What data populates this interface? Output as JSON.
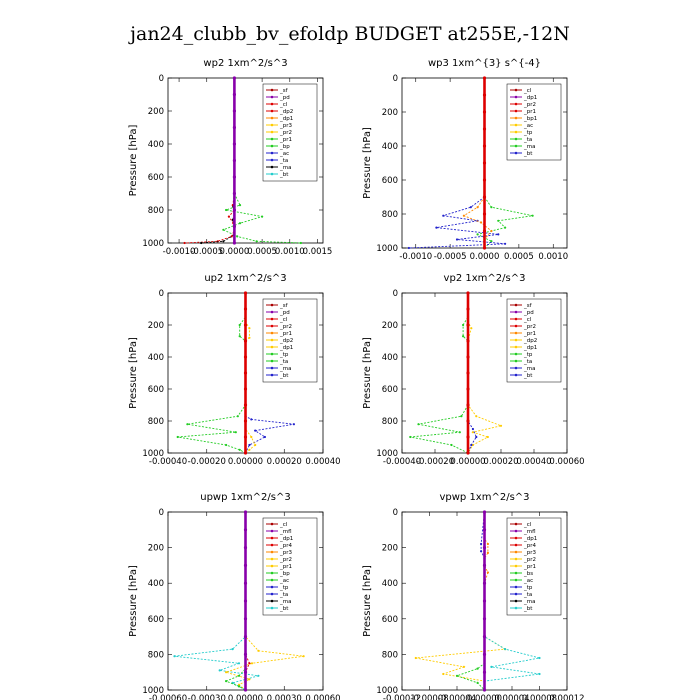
{
  "title": "jan24_clubb_bv_efoldp  BUDGET at255E,-12N",
  "colors": {
    "red": "#dd0000",
    "darkred": "#aa0000",
    "purple": "#8800aa",
    "orange": "#ff8800",
    "yellow": "#ffcc00",
    "green": "#22cc22",
    "blue": "#2222cc",
    "cyan": "#22cccc",
    "black": "#000000"
  },
  "chart_data": [
    {
      "type": "line",
      "title": "wp2   1xm^2/s^3",
      "ylabel": "Pressure [hPa]",
      "xlim": [
        -0.0012,
        0.0016
      ],
      "ylim": [
        1000,
        0
      ],
      "xticks": [
        "-0.0010",
        "-0.0005",
        "0.0000",
        "0.0005",
        "0.0010",
        "0.0015"
      ],
      "xtick_values": [
        -0.001,
        -0.0005,
        0,
        0.0005,
        0.001,
        0.0015
      ],
      "yticks": [
        0,
        200,
        400,
        600,
        800,
        1000
      ],
      "legend": [
        "_sf",
        "_pd",
        "_cl",
        "_dp2",
        "_dp1",
        "_pr3",
        "_pr2",
        "_pr1",
        "_bp",
        "_ac",
        "_ta",
        "_ma",
        "_bt"
      ],
      "series": [
        {
          "name": "_cl",
          "color": "red",
          "x": [
            0,
            0,
            0,
            0,
            -3e-05,
            0,
            -0.0001,
            -2e-05,
            0,
            -5e-05,
            -0.0003,
            -0.0009
          ],
          "y": [
            0,
            200,
            400,
            700,
            770,
            800,
            840,
            880,
            920,
            960,
            990,
            1000
          ]
        },
        {
          "name": "_pr1",
          "color": "green",
          "x": [
            0,
            0,
            0,
            0,
            0.0001,
            -0.00015,
            0.0005,
            0.0001,
            -0.0002,
            5e-05,
            0.0004,
            0.0012
          ],
          "y": [
            0,
            200,
            400,
            700,
            770,
            800,
            840,
            880,
            920,
            960,
            990,
            1000
          ]
        },
        {
          "name": "_ta",
          "color": "black",
          "x": [
            0,
            0,
            0,
            0,
            -2e-05,
            0,
            -3e-05,
            0,
            0,
            -0.0002,
            -0.0006
          ],
          "y": [
            0,
            200,
            400,
            700,
            780,
            820,
            860,
            900,
            950,
            990,
            1000
          ]
        },
        {
          "name": "_pd",
          "color": "purple",
          "x": [
            0,
            0,
            0,
            0,
            0,
            0,
            0,
            0,
            0,
            0,
            0
          ],
          "y": [
            0,
            100,
            200,
            300,
            400,
            500,
            600,
            700,
            800,
            900,
            1000
          ]
        }
      ]
    },
    {
      "type": "line",
      "title": "wp3   1xm^{3} s^{-4}",
      "ylabel": "Pressure [hPa]",
      "xlim": [
        -0.0012,
        0.0012
      ],
      "ylim": [
        1000,
        0
      ],
      "xticks": [
        "-0.0010",
        "-0.0005",
        "0.0000",
        "0.0005",
        "0.0010"
      ],
      "xtick_values": [
        -0.001,
        -0.0005,
        0,
        0.0005,
        0.001
      ],
      "yticks": [
        0,
        200,
        400,
        600,
        800,
        1000
      ],
      "legend": [
        "_cl",
        "_dp1",
        "_pr2",
        "_pr1",
        "_bp1",
        "_ac",
        "_tp",
        "_ta",
        "_ma",
        "_bt"
      ],
      "series": [
        {
          "name": "_ac",
          "color": "green",
          "x": [
            0,
            0,
            0,
            0,
            0.0001,
            0.0007,
            0.0002,
            0.0003,
            -0.0001,
            0.0001,
            0
          ],
          "y": [
            0,
            200,
            400,
            700,
            760,
            810,
            840,
            880,
            920,
            960,
            1000
          ]
        },
        {
          "name": "_tp",
          "color": "blue",
          "x": [
            0,
            0,
            0,
            0,
            -0.0002,
            -0.0006,
            -0.0001,
            -0.0007,
            0.0002,
            -0.0004,
            0.0003,
            -0.0011
          ],
          "y": [
            0,
            200,
            400,
            700,
            760,
            810,
            840,
            880,
            920,
            950,
            975,
            1000
          ]
        },
        {
          "name": "_pr2",
          "color": "orange",
          "x": [
            0,
            0,
            0,
            0,
            -0.0001,
            -0.0003,
            -5e-05,
            0.0001,
            0,
            0
          ],
          "y": [
            0,
            200,
            400,
            700,
            760,
            810,
            850,
            900,
            950,
            1000
          ]
        },
        {
          "name": "_cl",
          "color": "red",
          "x": [
            0,
            0,
            0,
            0,
            0,
            0,
            0,
            0,
            0,
            0,
            0
          ],
          "y": [
            0,
            100,
            200,
            300,
            400,
            500,
            600,
            700,
            800,
            900,
            1000
          ]
        }
      ]
    },
    {
      "type": "line",
      "title": "up2   1xm^2/s^3",
      "ylabel": "Pressure [hPa]",
      "xlim": [
        -0.0004,
        0.0004
      ],
      "ylim": [
        1000,
        0
      ],
      "xticks": [
        "-0.00040",
        "-0.00020",
        "0.00000",
        "0.00020",
        "0.00040"
      ],
      "xtick_values": [
        -0.0004,
        -0.0002,
        0,
        0.0002,
        0.0004
      ],
      "yticks": [
        0,
        200,
        400,
        600,
        800,
        1000
      ],
      "legend": [
        "_sf",
        "_pd",
        "_cl",
        "_pr2",
        "_pr1",
        "_dp2",
        "_dp1",
        "_tp",
        "_ta",
        "_ma",
        "_bt"
      ],
      "series": [
        {
          "name": "_pr1",
          "color": "green",
          "x": [
            0,
            0,
            -3e-05,
            -3e-05,
            0,
            0,
            0,
            -4e-05,
            -0.0003,
            -5e-05,
            -0.00035,
            -0.0001,
            -3e-05,
            0
          ],
          "y": [
            0,
            150,
            200,
            270,
            300,
            400,
            700,
            770,
            820,
            870,
            900,
            950,
            980,
            1000
          ]
        },
        {
          "name": "_dp1",
          "color": "blue",
          "x": [
            0,
            0,
            0,
            0,
            0,
            3e-05,
            0.00025,
            5e-05,
            0.0001,
            2e-05,
            0
          ],
          "y": [
            0,
            200,
            400,
            700,
            770,
            790,
            820,
            860,
            900,
            950,
            1000
          ]
        },
        {
          "name": "_pr2",
          "color": "yellow",
          "x": [
            0,
            0,
            2e-05,
            2e-05,
            0,
            0,
            3e-05,
            5e-05,
            2e-05,
            0
          ],
          "y": [
            0,
            180,
            220,
            280,
            300,
            850,
            900,
            950,
            980,
            1000
          ]
        },
        {
          "name": "_cl",
          "color": "red",
          "x": [
            0,
            0,
            0,
            0,
            0,
            0,
            0,
            0,
            0,
            0,
            0
          ],
          "y": [
            0,
            100,
            200,
            300,
            400,
            500,
            600,
            700,
            800,
            900,
            1000
          ]
        }
      ]
    },
    {
      "type": "line",
      "title": "vp2   1xm^2/s^3",
      "ylabel": "Pressure [hPa]",
      "xlim": [
        -0.0004,
        0.0006
      ],
      "ylim": [
        1000,
        0
      ],
      "xticks": [
        "-0.00040",
        "-0.00020",
        "0.00000",
        "0.00020",
        "0.00040",
        "0.00060"
      ],
      "xtick_values": [
        -0.0004,
        -0.0002,
        0,
        0.0002,
        0.0004,
        0.0006
      ],
      "yticks": [
        0,
        200,
        400,
        600,
        800,
        1000
      ],
      "legend": [
        "_sf",
        "_pd",
        "_cl",
        "_pr2",
        "_pr1",
        "_dp2",
        "_dp1",
        "_tp",
        "_ta",
        "_ma",
        "_bt"
      ],
      "series": [
        {
          "name": "_pr1",
          "color": "green",
          "x": [
            0,
            0,
            -3e-05,
            -3e-05,
            0,
            0,
            0,
            -4e-05,
            -0.0003,
            -5e-05,
            -0.00035,
            -0.0001,
            0
          ],
          "y": [
            0,
            150,
            200,
            270,
            300,
            400,
            700,
            770,
            820,
            870,
            900,
            950,
            1000
          ]
        },
        {
          "name": "_pr2",
          "color": "yellow",
          "x": [
            0,
            0,
            2e-05,
            0,
            0,
            5e-05,
            0.0002,
            3e-05,
            0.00012,
            3e-05,
            0
          ],
          "y": [
            0,
            180,
            220,
            300,
            700,
            770,
            830,
            870,
            900,
            950,
            1000
          ]
        },
        {
          "name": "_dp1",
          "color": "blue",
          "x": [
            0,
            0,
            0,
            3e-05,
            5e-05,
            2e-05,
            0
          ],
          "y": [
            0,
            400,
            800,
            850,
            900,
            950,
            1000
          ]
        },
        {
          "name": "_cl",
          "color": "red",
          "x": [
            0,
            0,
            0,
            0,
            0,
            0,
            0,
            0,
            0,
            0,
            0
          ],
          "y": [
            0,
            100,
            200,
            300,
            400,
            500,
            600,
            700,
            800,
            900,
            1000
          ]
        }
      ]
    },
    {
      "type": "line",
      "title": "upwp   1xm^2/s^3",
      "ylabel": "Pressure [hPa]",
      "xlim": [
        -0.0006,
        0.0006
      ],
      "ylim": [
        1000,
        0
      ],
      "xticks": [
        "-0.00060",
        "-0.00030",
        "0.00000",
        "0.00030",
        "0.00060"
      ],
      "xtick_values": [
        -0.0006,
        -0.0003,
        0,
        0.0003,
        0.0006
      ],
      "yticks": [
        0,
        200,
        400,
        600,
        800,
        1000
      ],
      "legend": [
        "_cl",
        "_mfl",
        "_dp1",
        "_pr4",
        "_pr3",
        "_pr2",
        "_pr1",
        "_bp",
        "_ac",
        "_tp",
        "_ta",
        "_ma",
        "_bt"
      ],
      "series": [
        {
          "name": "_tp",
          "color": "cyan",
          "x": [
            0,
            0,
            0,
            0,
            -0.0001,
            -0.00055,
            -5e-05,
            -0.0002,
            0.0001,
            -0.0001,
            0
          ],
          "y": [
            0,
            200,
            400,
            700,
            770,
            810,
            850,
            890,
            920,
            960,
            1000
          ]
        },
        {
          "name": "_pr2",
          "color": "yellow",
          "x": [
            0,
            0,
            0,
            0,
            0.0001,
            0.00045,
            5e-05,
            -0.00015,
            3e-05,
            -5e-05,
            0
          ],
          "y": [
            0,
            200,
            400,
            700,
            780,
            810,
            850,
            900,
            940,
            970,
            1000
          ]
        },
        {
          "name": "_ac",
          "color": "green",
          "x": [
            0,
            0,
            0,
            -5e-05,
            -0.00015,
            -5e-05,
            0
          ],
          "y": [
            0,
            400,
            880,
            920,
            950,
            980,
            1000
          ]
        },
        {
          "name": "_cl",
          "color": "red",
          "x": [
            0,
            0,
            0,
            0,
            0,
            0,
            3e-05,
            0,
            0,
            0
          ],
          "y": [
            0,
            200,
            400,
            600,
            750,
            800,
            850,
            900,
            950,
            1000
          ]
        },
        {
          "name": "_mfl",
          "color": "purple",
          "x": [
            0,
            0,
            0,
            0,
            0,
            0,
            0,
            0,
            0,
            0,
            0
          ],
          "y": [
            0,
            100,
            200,
            300,
            400,
            500,
            600,
            700,
            800,
            900,
            1000
          ]
        }
      ]
    },
    {
      "type": "line",
      "title": "vpwp   1xm^2/s^3",
      "ylabel": "Pressure [hPa]",
      "xlim": [
        -0.00012,
        0.00012
      ],
      "ylim": [
        1000,
        0
      ],
      "xticks": [
        "-0.00012",
        "-0.00008",
        "-0.00004",
        "0.00000",
        "0.00004",
        "0.00008",
        "0.00012"
      ],
      "xtick_values": [
        -0.00012,
        -8e-05,
        -4e-05,
        0,
        4e-05,
        8e-05,
        0.00012
      ],
      "yticks": [
        0,
        200,
        400,
        600,
        800,
        1000
      ],
      "legend": [
        "_cl",
        "_mfl",
        "_dp1",
        "_pr4",
        "_pr3",
        "_pr2",
        "_pr1",
        "_bs",
        "_ac",
        "_tp",
        "_ta",
        "_ma",
        "_bt"
      ],
      "series": [
        {
          "name": "_pr2",
          "color": "orange",
          "x": [
            0,
            0,
            5e-06,
            5e-06,
            0,
            0,
            5e-06,
            0,
            0
          ],
          "y": [
            0,
            150,
            180,
            230,
            260,
            300,
            340,
            400,
            1000
          ]
        },
        {
          "name": "_pr1",
          "color": "yellow",
          "x": [
            0,
            0,
            0,
            3e-05,
            -0.0001,
            -3e-05,
            -6e-05,
            0,
            0
          ],
          "y": [
            0,
            400,
            700,
            770,
            820,
            870,
            910,
            950,
            1000
          ]
        },
        {
          "name": "_tp",
          "color": "cyan",
          "x": [
            0,
            0,
            0,
            3e-05,
            8e-05,
            1e-05,
            8e-05,
            0,
            0
          ],
          "y": [
            0,
            400,
            700,
            770,
            820,
            870,
            910,
            950,
            1000
          ]
        },
        {
          "name": "_ta",
          "color": "blue",
          "x": [
            0,
            -5e-06,
            -5e-06,
            0,
            0,
            0,
            0
          ],
          "y": [
            0,
            180,
            220,
            260,
            300,
            340,
            1000
          ]
        },
        {
          "name": "_ac",
          "color": "green",
          "x": [
            0,
            0,
            -1e-05,
            -4e-05,
            -1e-05,
            0
          ],
          "y": [
            0,
            850,
            880,
            920,
            960,
            1000
          ]
        },
        {
          "name": "_mfl",
          "color": "purple",
          "x": [
            0,
            0,
            0,
            0,
            0,
            0,
            0,
            0,
            0,
            0,
            0
          ],
          "y": [
            0,
            100,
            200,
            300,
            400,
            500,
            600,
            700,
            800,
            900,
            1000
          ]
        }
      ]
    }
  ]
}
